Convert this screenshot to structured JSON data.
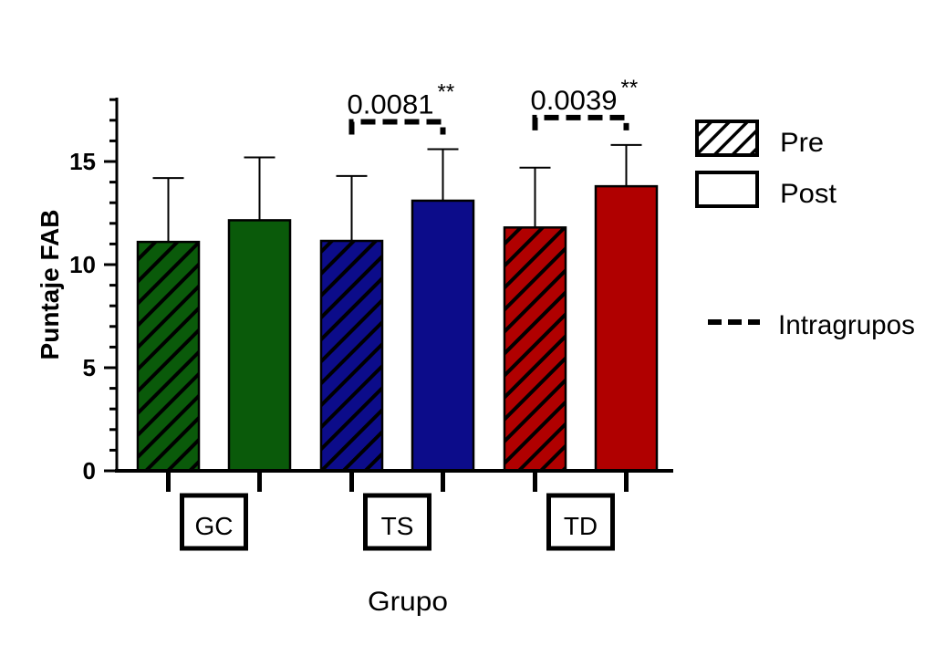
{
  "chart_data": {
    "type": "bar",
    "ylabel": "Puntaje FAB",
    "xlabel": "Grupo",
    "ylim": [
      0,
      18
    ],
    "yticks": [
      0,
      5,
      10,
      15
    ],
    "groups": [
      "GC",
      "TS",
      "TD"
    ],
    "series": [
      {
        "name": "Pre",
        "pattern": "hatched",
        "values": [
          11.1,
          11.15,
          11.8
        ],
        "errors": [
          3.1,
          3.15,
          2.9
        ]
      },
      {
        "name": "Post",
        "pattern": "solid",
        "values": [
          12.15,
          13.1,
          13.8
        ],
        "errors": [
          3.05,
          2.5,
          2.0
        ]
      }
    ],
    "group_colors": {
      "GC": "#0a5a0a",
      "TS": "#0c0c8a",
      "TD": "#b00000"
    },
    "comparisons": [
      {
        "group": "TS",
        "p_label": "0.0081",
        "stars": "**"
      },
      {
        "group": "TD",
        "p_label": "0.0039",
        "stars": "**"
      }
    ],
    "legend": {
      "comparison_label": "Intragrupos"
    }
  }
}
